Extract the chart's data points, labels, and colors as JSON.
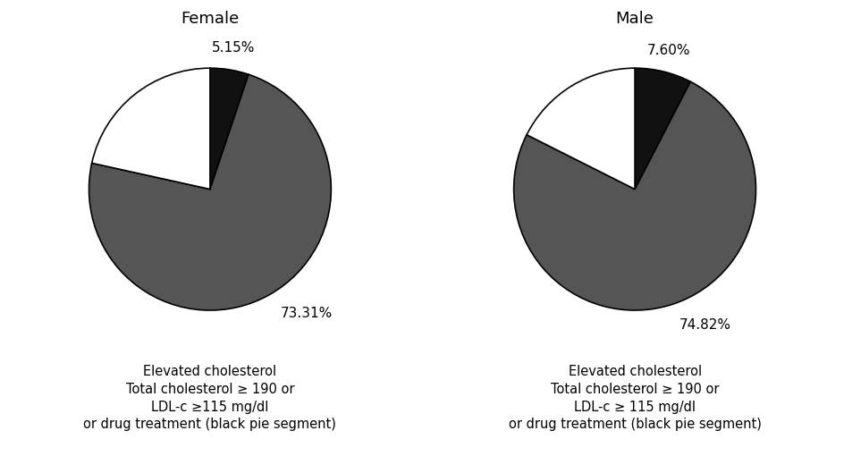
{
  "female_title": "Female",
  "male_title": "Male",
  "female_slices": [
    5.15,
    73.31,
    21.54
  ],
  "male_slices": [
    7.6,
    74.82,
    17.58
  ],
  "colors": [
    "#111111",
    "#555555",
    "#ffffff"
  ],
  "female_pct_labels": [
    "5.15%",
    "73.31%",
    ""
  ],
  "male_pct_labels": [
    "7.60%",
    "74.82%",
    ""
  ],
  "female_startangle": 90,
  "male_startangle": 90,
  "caption_female": "Elevated cholesterol\nTotal cholesterol ≥ 190 or\nLDL-c ≥115 mg/dl\nor drug treatment (black pie segment)",
  "caption_male": "Elevated cholesterol\nTotal cholesterol ≥ 190 or\nLDL-c ≥ 115 mg/dl\nor drug treatment (black pie segment)",
  "background_color": "#ffffff",
  "edge_color": "#000000",
  "label_fontsize": 11,
  "title_fontsize": 13,
  "caption_fontsize": 10.5
}
